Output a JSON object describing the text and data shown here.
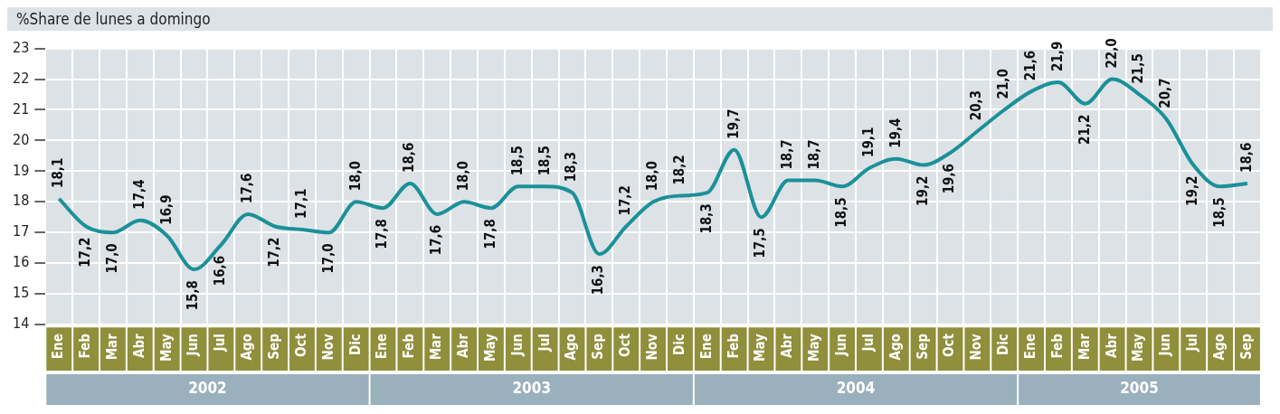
{
  "chart_data": {
    "type": "line",
    "title": "%Share de lunes a domingo",
    "categories": [
      "Ene",
      "Feb",
      "Mar",
      "Abr",
      "May",
      "Jun",
      "Jul",
      "Ago",
      "Sep",
      "Oct",
      "Nov",
      "Dic",
      "Ene",
      "Feb",
      "Mar",
      "Abr",
      "May",
      "Jun",
      "Jul",
      "Ago",
      "Sep",
      "Oct",
      "Nov",
      "Dic",
      "Ene",
      "Feb",
      "May",
      "Abr",
      "May",
      "Jun",
      "Jul",
      "Ago",
      "Sep",
      "Oct",
      "Nov",
      "Dic",
      "Ene",
      "Feb",
      "Mar",
      "Abr",
      "May",
      "Jun",
      "Jul",
      "Ago",
      "Sep"
    ],
    "series": [
      {
        "color": "#1a9199",
        "values": [
          18.1,
          17.2,
          17.0,
          17.4,
          16.9,
          15.8,
          16.6,
          17.6,
          17.2,
          17.1,
          17.0,
          18.0,
          17.8,
          18.6,
          17.6,
          18.0,
          17.8,
          18.5,
          18.5,
          18.3,
          16.3,
          17.2,
          18.0,
          18.2,
          18.3,
          19.7,
          17.5,
          18.7,
          18.7,
          18.5,
          19.1,
          19.4,
          19.2,
          19.6,
          20.3,
          21.0,
          21.6,
          21.9,
          21.2,
          22.0,
          21.5,
          20.7,
          19.2,
          18.5,
          18.6
        ],
        "value_labels": [
          "18,1",
          "17,2",
          "17,0",
          "17,4",
          "16,9",
          "15,8",
          "16,6",
          "17,6",
          "17,2",
          "17,1",
          "17,0",
          "18,0",
          "17,8",
          "18,6",
          "17,6",
          "18,0",
          "17,8",
          "18,5",
          "18,5",
          "18,3",
          "16,3",
          "17,2",
          "18,0",
          "18,2",
          "18,3",
          "19,7",
          "17,5",
          "18,7",
          "18,7",
          "18,5",
          "19,1",
          "19,4",
          "19,2",
          "19,6",
          "20,3",
          "21,0",
          "21,6",
          "21,9",
          "21,2",
          "22,0",
          "21,5",
          "20,7",
          "19,2",
          "18,5",
          "18,6"
        ]
      }
    ],
    "ylim": [
      14,
      23
    ],
    "yticks": [
      14,
      15,
      16,
      17,
      18,
      19,
      20,
      21,
      22,
      23
    ],
    "grid": true,
    "legend": false,
    "marker": "none",
    "line_style": "solid",
    "annotations": [
      "2002",
      "2003",
      "2004",
      "2005"
    ]
  }
}
